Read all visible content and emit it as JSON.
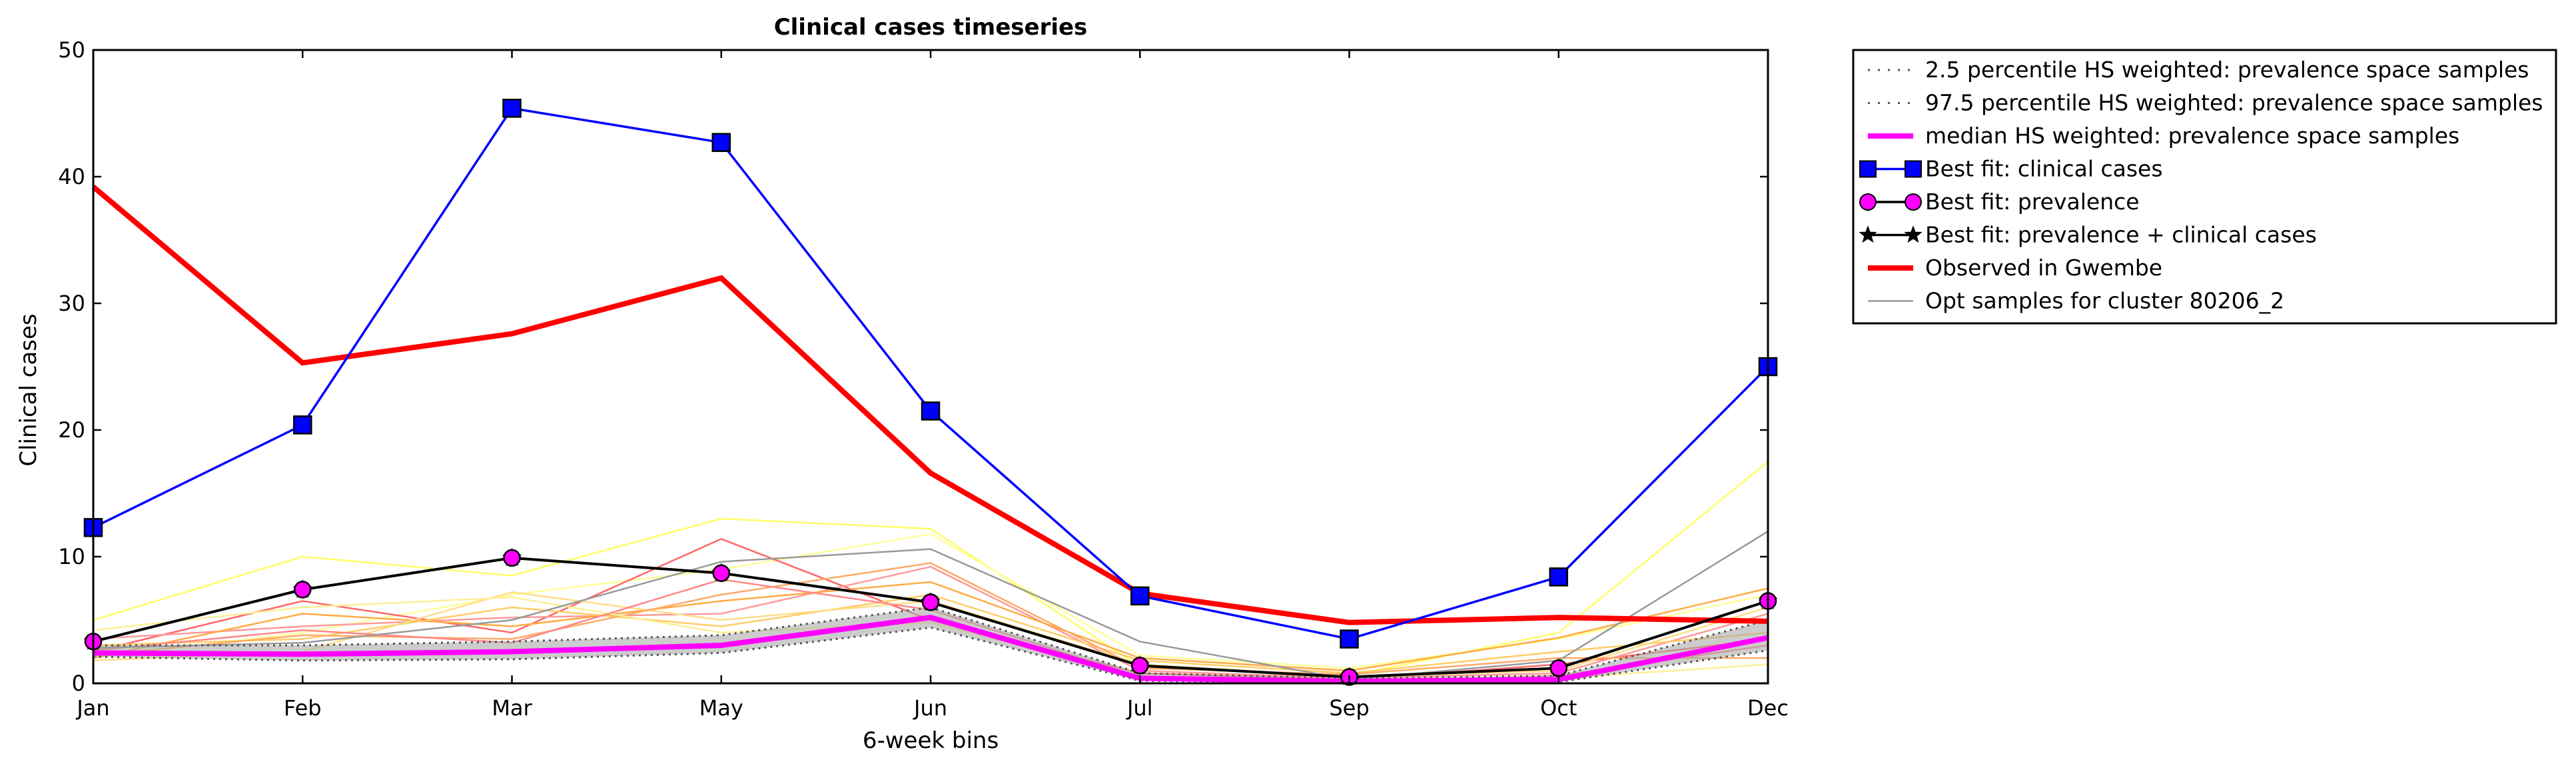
{
  "chart_data": {
    "type": "line",
    "title": "Clinical cases timeseries",
    "xlabel": "6-week bins",
    "ylabel": "Clinical cases",
    "categories": [
      "Jan",
      "Feb",
      "Mar",
      "May",
      "Jun",
      "Jul",
      "Sep",
      "Oct",
      "Dec"
    ],
    "yticks": [
      "0",
      "10",
      "20",
      "30",
      "40",
      "50"
    ],
    "ylim": [
      0,
      50
    ],
    "grid": false,
    "legend_placement": "outside top-right",
    "series": [
      {
        "name": "2.5 percentile HS weighted: prevalence space samples",
        "color": "#555555",
        "style": "dotted",
        "values": [
          2.1,
          1.8,
          1.9,
          2.4,
          4.4,
          0.2,
          0.05,
          0.1,
          2.6
        ]
      },
      {
        "name": "97.5 percentile HS weighted: prevalence space samples",
        "color": "#555555",
        "style": "dotted",
        "values": [
          3.0,
          3.0,
          3.3,
          3.8,
          6.0,
          0.8,
          0.4,
          0.6,
          5.0
        ]
      },
      {
        "name": "median HS weighted: prevalence space samples",
        "color": "#ff00ff",
        "style": "solid-thick",
        "values": [
          2.4,
          2.3,
          2.5,
          3.0,
          5.2,
          0.4,
          0.15,
          0.3,
          3.6
        ]
      },
      {
        "name": "Best fit: clinical cases",
        "color": "#0000ff",
        "marker": "square",
        "values": [
          12.3,
          20.4,
          45.4,
          42.7,
          21.5,
          6.9,
          3.5,
          8.4,
          25.0
        ]
      },
      {
        "name": "Best fit: prevalence",
        "color": "#000000",
        "marker": "circle",
        "marker_color": "#ff00ff",
        "values": [
          3.3,
          7.4,
          9.9,
          8.7,
          6.4,
          1.4,
          0.5,
          1.2,
          6.5
        ]
      },
      {
        "name": "Best fit: prevalence + clinical cases",
        "color": "#000000",
        "marker": "star",
        "values": [
          3.3,
          7.4,
          9.9,
          8.7,
          6.4,
          1.4,
          0.5,
          1.2,
          6.5
        ]
      },
      {
        "name": "Observed in Gwembe",
        "color": "#ff0000",
        "style": "solid-thick",
        "values": [
          39.2,
          25.3,
          27.6,
          32.0,
          16.6,
          7.1,
          4.8,
          5.2,
          4.9
        ]
      },
      {
        "name": "Opt samples for cluster 80206_2",
        "color": "#999999",
        "style": "thin",
        "values": [
          2.8,
          3.2,
          5.0,
          9.6,
          10.6,
          3.3,
          0.3,
          1.8,
          12.0
        ]
      }
    ],
    "background_series": [
      {
        "color": "#ffff66",
        "values": [
          5.0,
          10.0,
          8.5,
          13.0,
          12.2,
          1.3,
          0.6,
          4.0,
          17.5
        ]
      },
      {
        "color": "#ffff99",
        "values": [
          2.0,
          4.0,
          7.0,
          9.0,
          11.8,
          2.2,
          1.2,
          3.5,
          7.0
        ]
      },
      {
        "color": "#ff6666",
        "values": [
          2.5,
          6.5,
          4.0,
          11.4,
          5.0,
          0.8,
          0.3,
          1.5,
          3.5
        ]
      },
      {
        "color": "#ff9999",
        "values": [
          3.5,
          4.5,
          5.2,
          5.5,
          9.2,
          1.0,
          0.4,
          0.8,
          5.5
        ]
      },
      {
        "color": "#ffaa44",
        "values": [
          2.0,
          5.5,
          4.5,
          6.5,
          8.0,
          2.0,
          1.0,
          3.6,
          7.5
        ]
      },
      {
        "color": "#ffcc66",
        "values": [
          3.0,
          3.5,
          6.0,
          4.5,
          7.0,
          1.8,
          0.8,
          2.5,
          4.0
        ]
      },
      {
        "color": "#ffdd88",
        "values": [
          1.8,
          2.5,
          7.2,
          5.0,
          6.5,
          1.5,
          0.5,
          1.0,
          6.0
        ]
      },
      {
        "color": "#ffaa66",
        "values": [
          2.2,
          3.8,
          3.5,
          7.0,
          9.5,
          1.2,
          0.7,
          2.0,
          2.0
        ]
      },
      {
        "color": "#ffee99",
        "values": [
          4.2,
          6.0,
          6.8,
          4.0,
          4.8,
          0.6,
          0.2,
          0.4,
          1.5
        ]
      },
      {
        "color": "#ff8888",
        "values": [
          2.6,
          4.2,
          3.2,
          8.2,
          5.8,
          0.5,
          0.1,
          0.6,
          3.0
        ]
      }
    ]
  }
}
